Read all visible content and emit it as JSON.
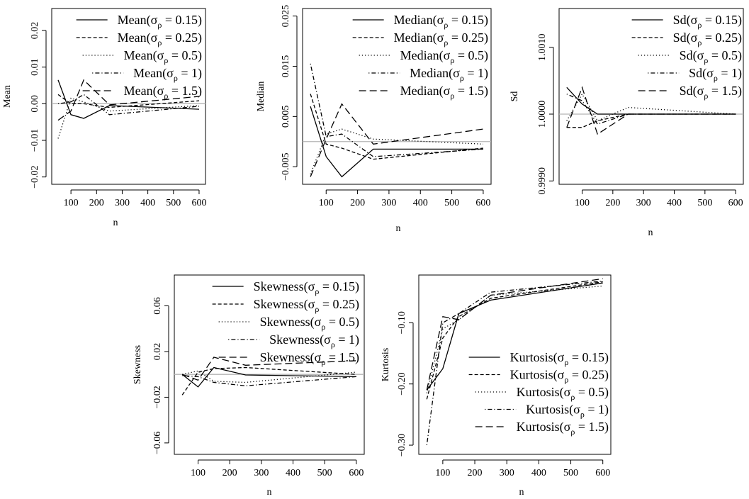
{
  "chart_data": [
    {
      "type": "line",
      "xlabel": "n",
      "ylabel": "Mean",
      "xlim": [
        25,
        625
      ],
      "ylim": [
        -0.022,
        0.026
      ],
      "xticks": [
        100,
        200,
        300,
        400,
        500,
        600
      ],
      "yticks": [
        -0.02,
        -0.01,
        0.0,
        0.01,
        0.02
      ],
      "ytick_labels": [
        "−0.02",
        "−0.01",
        "0.00",
        "0.01",
        "0.02"
      ],
      "reference_line": 0,
      "legend_position": "top-right",
      "x": [
        50,
        100,
        150,
        250,
        600
      ],
      "series": [
        {
          "label": "Mean",
          "sigma": "0.15",
          "style": "solid",
          "values": [
            0.0065,
            -0.003,
            -0.004,
            -0.0005,
            -0.0015
          ]
        },
        {
          "label": "Mean",
          "sigma": "0.25",
          "style": "dashed",
          "values": [
            0.0025,
            0.0,
            0.0,
            -0.001,
            0.0008
          ]
        },
        {
          "label": "Mean",
          "sigma": "0.5",
          "style": "dotted",
          "values": [
            -0.0095,
            0.0015,
            0.0005,
            -0.002,
            -0.0005
          ]
        },
        {
          "label": "Mean",
          "sigma": "1",
          "style": "dotdash",
          "values": [
            0.0,
            0.0005,
            0.0025,
            -0.003,
            -0.0007
          ]
        },
        {
          "label": "Mean",
          "sigma": "1.5",
          "style": "longdash",
          "values": [
            -0.0045,
            -0.002,
            0.0065,
            -0.0003,
            0.002
          ]
        }
      ]
    },
    {
      "type": "line",
      "xlabel": "n",
      "ylabel": "Median",
      "xlim": [
        25,
        625
      ],
      "ylim": [
        -0.0085,
        0.0265
      ],
      "xticks": [
        100,
        200,
        300,
        400,
        500,
        600
      ],
      "yticks": [
        -0.005,
        0.005,
        0.015,
        0.025
      ],
      "ytick_labels": [
        "−0.005",
        "0.005",
        "0.015",
        "0.025"
      ],
      "reference_line": 0,
      "legend_position": "top-right",
      "x": [
        50,
        100,
        150,
        250,
        600
      ],
      "series": [
        {
          "label": "Median",
          "sigma": "0.15",
          "style": "solid",
          "values": [
            0.007,
            -0.003,
            -0.007,
            -0.0015,
            -0.0015
          ]
        },
        {
          "label": "Median",
          "sigma": "0.25",
          "style": "dashed",
          "values": [
            0.0095,
            -0.0005,
            -0.0013,
            -0.0035,
            -0.0013
          ]
        },
        {
          "label": "Median",
          "sigma": "0.5",
          "style": "dotted",
          "values": [
            -0.0065,
            0.0015,
            0.0025,
            0.0005,
            -0.0005
          ]
        },
        {
          "label": "Median",
          "sigma": "1",
          "style": "dotdash",
          "values": [
            0.0155,
            0.001,
            0.0015,
            -0.003,
            -0.0015
          ]
        },
        {
          "label": "Median",
          "sigma": "1.5",
          "style": "longdash",
          "values": [
            -0.007,
            0.0005,
            0.0075,
            -0.0005,
            0.0025
          ]
        }
      ]
    },
    {
      "type": "line",
      "xlabel": "n",
      "ylabel": "Sd",
      "xlim": [
        25,
        625
      ],
      "ylim": [
        0.99895,
        1.00158
      ],
      "xticks": [
        100,
        200,
        300,
        400,
        500,
        600
      ],
      "yticks": [
        0.999,
        1.0,
        1.001
      ],
      "ytick_labels": [
        "0.9990",
        "1.0000",
        "1.0010"
      ],
      "reference_line": 1.0,
      "legend_position": "top-right",
      "x": [
        50,
        100,
        150,
        250,
        600
      ],
      "series": [
        {
          "label": "Sd",
          "sigma": "0.15",
          "style": "solid",
          "values": [
            1.0004,
            1.00015,
            1.0,
            1.0,
            1.0
          ]
        },
        {
          "label": "Sd",
          "sigma": "0.25",
          "style": "dashed",
          "values": [
            0.9998,
            0.9998,
            0.9999,
            1.0,
            1.0
          ]
        },
        {
          "label": "Sd",
          "sigma": "0.5",
          "style": "dotted",
          "values": [
            0.9999,
            1.0003,
            0.9999,
            1.0001,
            1.0
          ]
        },
        {
          "label": "Sd",
          "sigma": "1",
          "style": "dotdash",
          "values": [
            1.0003,
            1.0002,
            0.99985,
            1.0,
            1.0
          ]
        },
        {
          "label": "Sd",
          "sigma": "1.5",
          "style": "longdash",
          "values": [
            0.9998,
            1.0004,
            0.9997,
            1.0,
            1.0
          ]
        }
      ]
    },
    {
      "type": "line",
      "xlabel": "n",
      "ylabel": "Skewness",
      "xlim": [
        25,
        625
      ],
      "ylim": [
        -0.07,
        0.087
      ],
      "xticks": [
        100,
        200,
        300,
        400,
        500,
        600
      ],
      "yticks": [
        -0.06,
        -0.02,
        0.02,
        0.06
      ],
      "ytick_labels": [
        "−0.06",
        "−0.02",
        "0.02",
        "0.06"
      ],
      "reference_line": 0,
      "legend_position": "top-right",
      "x": [
        50,
        100,
        150,
        250,
        600
      ],
      "series": [
        {
          "label": "Skewness",
          "sigma": "0.15",
          "style": "solid",
          "values": [
            0.0,
            -0.011,
            0.006,
            -0.0005,
            -0.002
          ]
        },
        {
          "label": "Skewness",
          "sigma": "0.25",
          "style": "dashed",
          "values": [
            -0.018,
            0.002,
            0.005,
            0.006,
            0.0
          ]
        },
        {
          "label": "Skewness",
          "sigma": "0.5",
          "style": "dotted",
          "values": [
            0.0,
            0.003,
            -0.006,
            -0.007,
            0.002
          ]
        },
        {
          "label": "Skewness",
          "sigma": "1",
          "style": "dotdash",
          "values": [
            -0.001,
            -0.002,
            -0.007,
            -0.01,
            -0.002
          ]
        },
        {
          "label": "Skewness",
          "sigma": "1.5",
          "style": "longdash",
          "values": [
            0.0,
            -0.005,
            0.015,
            0.008,
            0.012
          ]
        }
      ]
    },
    {
      "type": "line",
      "xlabel": "n",
      "ylabel": "Kurtosis",
      "xlim": [
        25,
        625
      ],
      "ylim": [
        -0.315,
        -0.022
      ],
      "xticks": [
        100,
        200,
        300,
        400,
        500,
        600
      ],
      "yticks": [
        -0.3,
        -0.2,
        -0.1
      ],
      "ytick_labels": [
        "−0.30",
        "−0.20",
        "−0.10"
      ],
      "reference_line": null,
      "legend_position": "bottom-right",
      "x": [
        50,
        100,
        150,
        250,
        600
      ],
      "series": [
        {
          "label": "Kurtosis",
          "sigma": "0.15",
          "style": "solid",
          "values": [
            -0.21,
            -0.175,
            -0.085,
            -0.063,
            -0.035
          ]
        },
        {
          "label": "Kurtosis",
          "sigma": "0.25",
          "style": "dashed",
          "values": [
            -0.225,
            -0.125,
            -0.09,
            -0.06,
            -0.033
          ]
        },
        {
          "label": "Kurtosis",
          "sigma": "0.5",
          "style": "dotted",
          "values": [
            -0.215,
            -0.11,
            -0.095,
            -0.055,
            -0.04
          ]
        },
        {
          "label": "Kurtosis",
          "sigma": "1",
          "style": "dotdash",
          "values": [
            -0.3,
            -0.1,
            -0.085,
            -0.05,
            -0.032
          ]
        },
        {
          "label": "Kurtosis",
          "sigma": "1.5",
          "style": "longdash",
          "values": [
            -0.21,
            -0.09,
            -0.095,
            -0.055,
            -0.028
          ]
        }
      ]
    }
  ],
  "legend_symbol": "σ",
  "legend_subscript": "ρ"
}
